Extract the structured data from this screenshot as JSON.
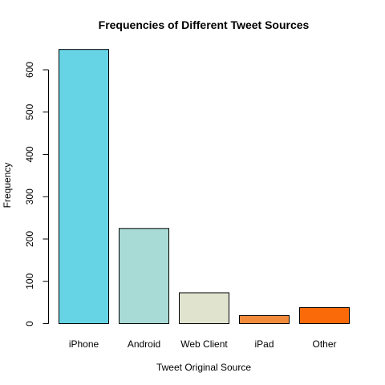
{
  "chart_data": {
    "type": "bar",
    "title": "Frequencies of Different Tweet Sources",
    "xlabel": "Tweet Original Source",
    "ylabel": "Frequency",
    "categories": [
      "iPhone",
      "Android",
      "Web Client",
      "iPad",
      "Other"
    ],
    "values": [
      648,
      225,
      73,
      19,
      38
    ],
    "colors": [
      "#67D4E6",
      "#A8DBD6",
      "#E0E4CF",
      "#F28C3C",
      "#FA6A08"
    ],
    "y_ticks": [
      0,
      100,
      200,
      300,
      400,
      500,
      600
    ],
    "ylim": [
      0,
      660
    ],
    "grid": false,
    "legend": "none"
  }
}
